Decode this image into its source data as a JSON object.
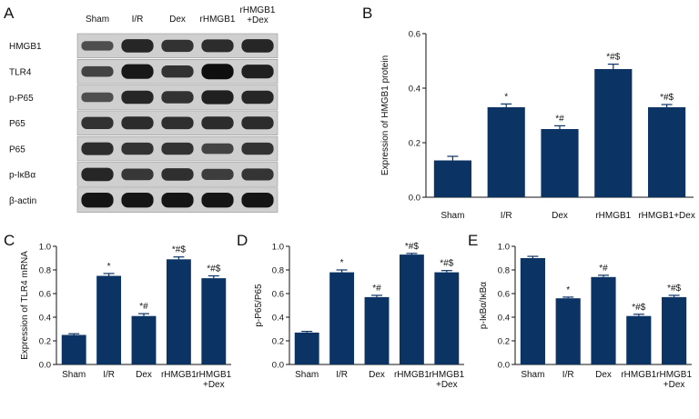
{
  "figure": {
    "bar_color": "#0b3363",
    "axis_color": "#111111"
  },
  "blot": {
    "panel": "A",
    "lanes": [
      "Sham",
      "I/R",
      "Dex",
      "rHMGB1",
      "rHMGB1\n+Dex"
    ],
    "rows": [
      {
        "label": "HMGB1",
        "intensity": [
          0.45,
          0.8,
          0.7,
          0.75,
          0.8
        ]
      },
      {
        "label": "TLR4",
        "intensity": [
          0.55,
          0.92,
          0.7,
          1.0,
          0.85
        ]
      },
      {
        "label": "p-P65",
        "intensity": [
          0.45,
          0.8,
          0.7,
          0.85,
          0.8
        ]
      },
      {
        "label": "P65",
        "intensity": [
          0.7,
          0.75,
          0.72,
          0.75,
          0.75
        ]
      },
      {
        "label": "P65",
        "intensity": [
          0.75,
          0.7,
          0.7,
          0.55,
          0.7
        ]
      },
      {
        "label": "p-IκBα",
        "intensity": [
          0.8,
          0.65,
          0.72,
          0.6,
          0.68
        ]
      },
      {
        "label": "β-actin",
        "intensity": [
          0.95,
          0.95,
          0.95,
          0.95,
          0.95
        ]
      }
    ]
  },
  "chart_data": [
    {
      "panel": "B",
      "type": "bar",
      "ylabel": "Expression of HMGB1 protein",
      "categories": [
        "Sham",
        "I/R",
        "Dex",
        "rHMGB1",
        "rHMGB1+Dex"
      ],
      "category_lines": [
        [
          "Sham"
        ],
        [
          "I/R"
        ],
        [
          "Dex"
        ],
        [
          "rHMGB1"
        ],
        [
          "rHMGB1+Dex"
        ]
      ],
      "values": [
        0.135,
        0.33,
        0.25,
        0.47,
        0.33
      ],
      "errors": [
        0.015,
        0.012,
        0.012,
        0.018,
        0.01
      ],
      "annotations": [
        "",
        "*",
        "*#",
        "*#$",
        "*#$"
      ],
      "ylim": [
        0,
        0.6
      ],
      "yticks": [
        "0.0",
        "0.2",
        "0.4",
        "0.6"
      ]
    },
    {
      "panel": "C",
      "type": "bar",
      "ylabel": "Expression of TLR4 mRNA",
      "categories": [
        "Sham",
        "I/R",
        "Dex",
        "rHMGB1",
        "rHMGB1\n+Dex"
      ],
      "category_lines": [
        [
          "Sham"
        ],
        [
          "I/R"
        ],
        [
          "Dex"
        ],
        [
          "rHMGB1"
        ],
        [
          "rHMGB1",
          "+Dex"
        ]
      ],
      "values": [
        0.25,
        0.75,
        0.41,
        0.89,
        0.73
      ],
      "errors": [
        0.01,
        0.02,
        0.02,
        0.02,
        0.02
      ],
      "annotations": [
        "",
        "*",
        "*#",
        "*#$",
        "*#$"
      ],
      "ylim": [
        0,
        1.0
      ],
      "yticks": [
        "0.0",
        "0.2",
        "0.4",
        "0.6",
        "0.8",
        "1.0"
      ]
    },
    {
      "panel": "D",
      "type": "bar",
      "ylabel": "p-P65/P65",
      "categories": [
        "Sham",
        "I/R",
        "Dex",
        "rHMGB1",
        "rHMGB1\n+Dex"
      ],
      "category_lines": [
        [
          "Sham"
        ],
        [
          "I/R"
        ],
        [
          "Dex"
        ],
        [
          "rHMGB1"
        ],
        [
          "rHMGB1",
          "+Dex"
        ]
      ],
      "values": [
        0.27,
        0.78,
        0.57,
        0.93,
        0.78
      ],
      "errors": [
        0.01,
        0.02,
        0.015,
        0.01,
        0.015
      ],
      "annotations": [
        "",
        "*",
        "*#",
        "*#$",
        "*#$"
      ],
      "ylim": [
        0,
        1.0
      ],
      "yticks": [
        "0.0",
        "0.2",
        "0.4",
        "0.6",
        "0.8",
        "1.0"
      ]
    },
    {
      "panel": "E",
      "type": "bar",
      "ylabel": "p-IκBα/IκBα",
      "categories": [
        "Sham",
        "I/R",
        "Dex",
        "rHMGB1",
        "rHMGB1\n+Dex"
      ],
      "category_lines": [
        [
          "Sham"
        ],
        [
          "I/R"
        ],
        [
          "Dex"
        ],
        [
          "rHMGB1"
        ],
        [
          "rHMGB1",
          "+Dex"
        ]
      ],
      "values": [
        0.9,
        0.56,
        0.74,
        0.41,
        0.57
      ],
      "errors": [
        0.015,
        0.01,
        0.015,
        0.015,
        0.015
      ],
      "annotations": [
        "",
        "*",
        "*#",
        "*#$",
        "*#$"
      ],
      "ylim": [
        0,
        1.0
      ],
      "yticks": [
        "0.0",
        "0.2",
        "0.4",
        "0.6",
        "0.8",
        "1.0"
      ]
    }
  ]
}
